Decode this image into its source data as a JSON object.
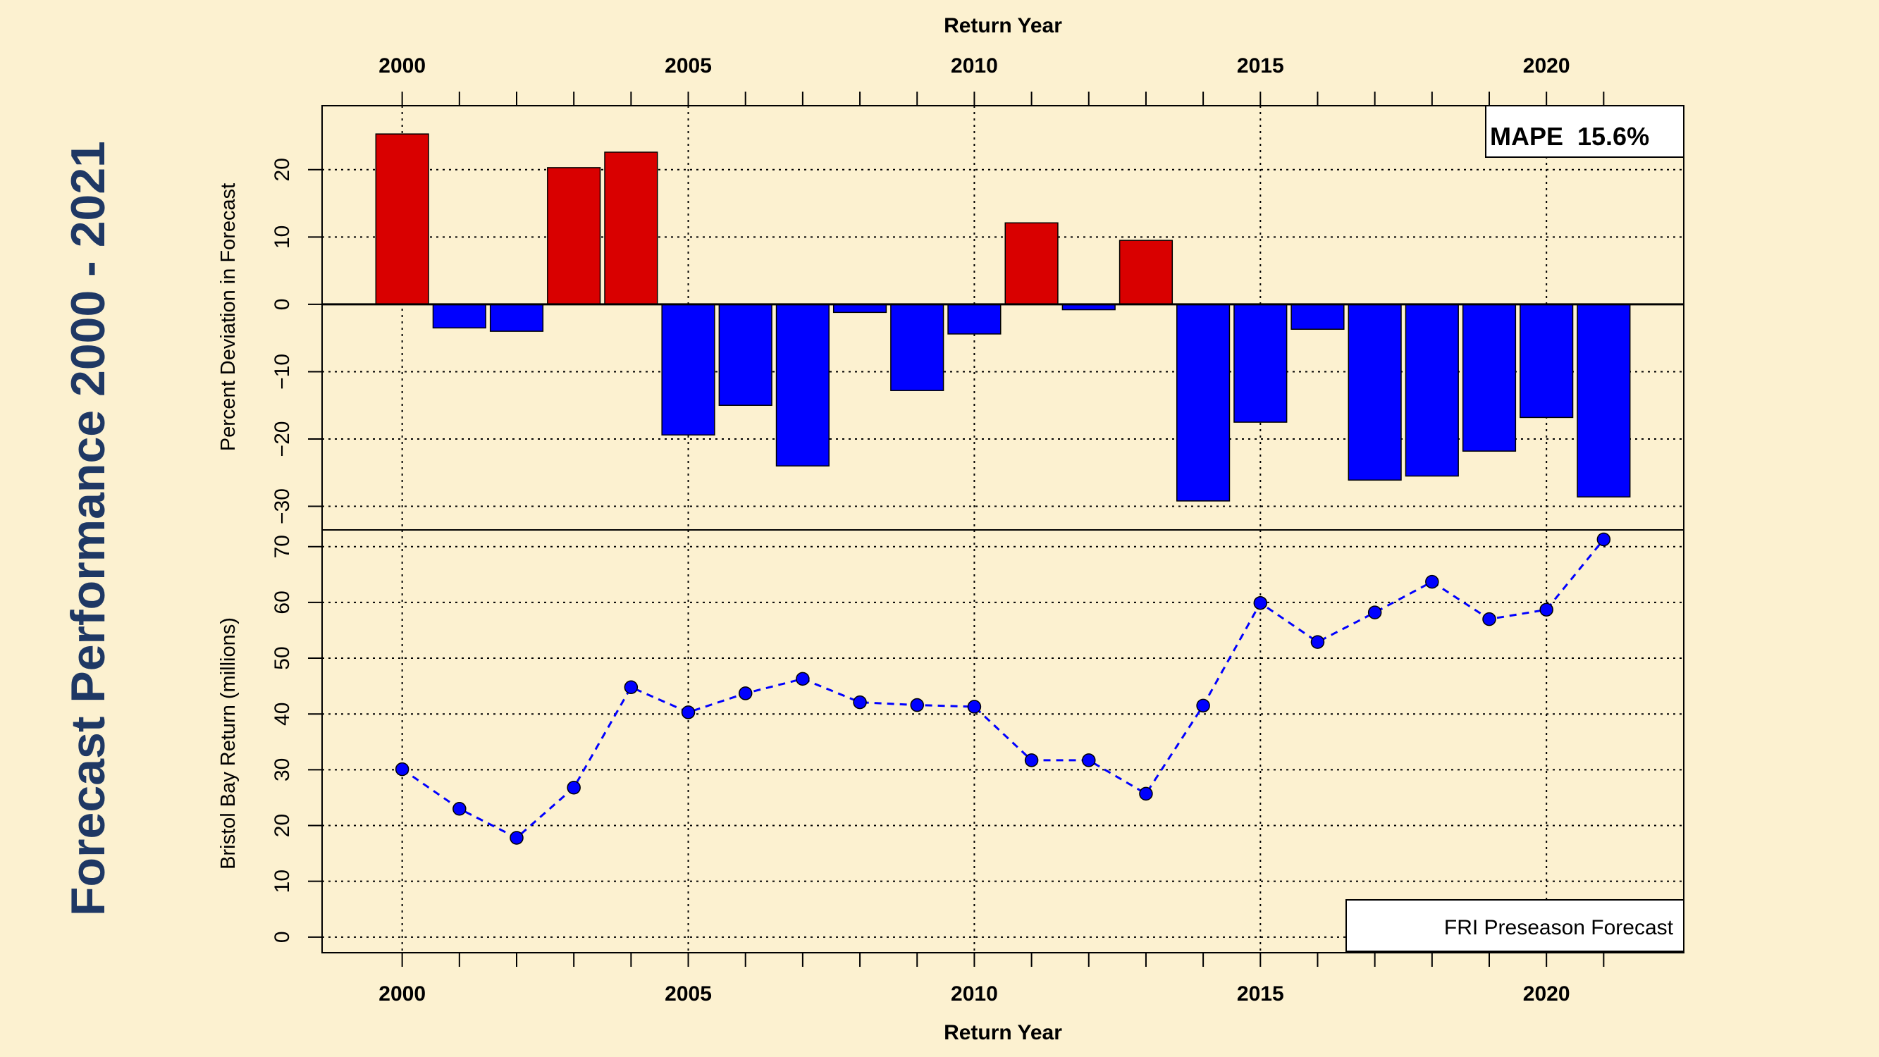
{
  "page_title": "Forecast Performance 2000 - 2021",
  "colors": {
    "background": "#fcf1d0",
    "title": "#1f3864",
    "over_forecast": "#d90000",
    "under_forecast": "#0000ff",
    "line_series": "#0000ff"
  },
  "chart_data": [
    {
      "type": "bar",
      "top_xlabel": "Return Year",
      "ylabel": "Percent Deviation in Forecast",
      "x": [
        2000,
        2001,
        2002,
        2003,
        2004,
        2005,
        2006,
        2007,
        2008,
        2009,
        2010,
        2011,
        2012,
        2013,
        2014,
        2015,
        2016,
        2017,
        2018,
        2019,
        2020,
        2021
      ],
      "values": [
        25.3,
        -3.5,
        -4.0,
        20.3,
        22.6,
        -19.4,
        -15.0,
        -24.0,
        -1.2,
        -12.8,
        -4.4,
        12.1,
        -0.8,
        9.5,
        -29.2,
        -17.5,
        -3.7,
        -26.1,
        -25.5,
        -21.8,
        -16.8,
        -28.6
      ],
      "xlim": [
        1998.6,
        2022.4
      ],
      "ylim": [
        -33.5,
        29.5
      ],
      "x_ticks": [
        2000,
        2005,
        2010,
        2015,
        2020
      ],
      "x_tick_labels": [
        "2000",
        "2005",
        "2010",
        "2015",
        "2020"
      ],
      "y_ticks": [
        -30,
        -20,
        -10,
        0,
        10,
        20
      ],
      "y_tick_labels": [
        "−30",
        "−20",
        "−10",
        "0",
        "10",
        "20"
      ],
      "grid": true,
      "annotation": "MAPE  15.6%",
      "annotation_position": "top-right"
    },
    {
      "type": "line",
      "xlabel": "Return Year",
      "ylabel": "Bristol Bay Return (millions)",
      "series": [
        {
          "name": "FRI Preseason Forecast",
          "x": [
            2000,
            2001,
            2002,
            2003,
            2004,
            2005,
            2006,
            2007,
            2008,
            2009,
            2010,
            2011,
            2012,
            2013,
            2014,
            2015,
            2016,
            2017,
            2018,
            2019,
            2020,
            2021
          ],
          "values": [
            30.1,
            23.0,
            17.8,
            26.8,
            44.8,
            40.3,
            43.7,
            46.3,
            42.1,
            41.6,
            41.3,
            31.7,
            31.7,
            25.7,
            41.5,
            59.9,
            52.9,
            58.2,
            63.7,
            57.0,
            58.7,
            71.3
          ]
        }
      ],
      "xlim": [
        1998.6,
        2022.4
      ],
      "ylim": [
        -2.8,
        73.0
      ],
      "x_ticks": [
        2000,
        2005,
        2010,
        2015,
        2020
      ],
      "x_tick_labels": [
        "2000",
        "2005",
        "2010",
        "2015",
        "2020"
      ],
      "y_ticks": [
        0,
        10,
        20,
        30,
        40,
        50,
        60,
        70
      ],
      "y_tick_labels": [
        "0",
        "10",
        "20",
        "30",
        "40",
        "50",
        "60",
        "70"
      ],
      "grid": true,
      "legend": "FRI Preseason Forecast",
      "legend_position": "bottom-right"
    }
  ]
}
